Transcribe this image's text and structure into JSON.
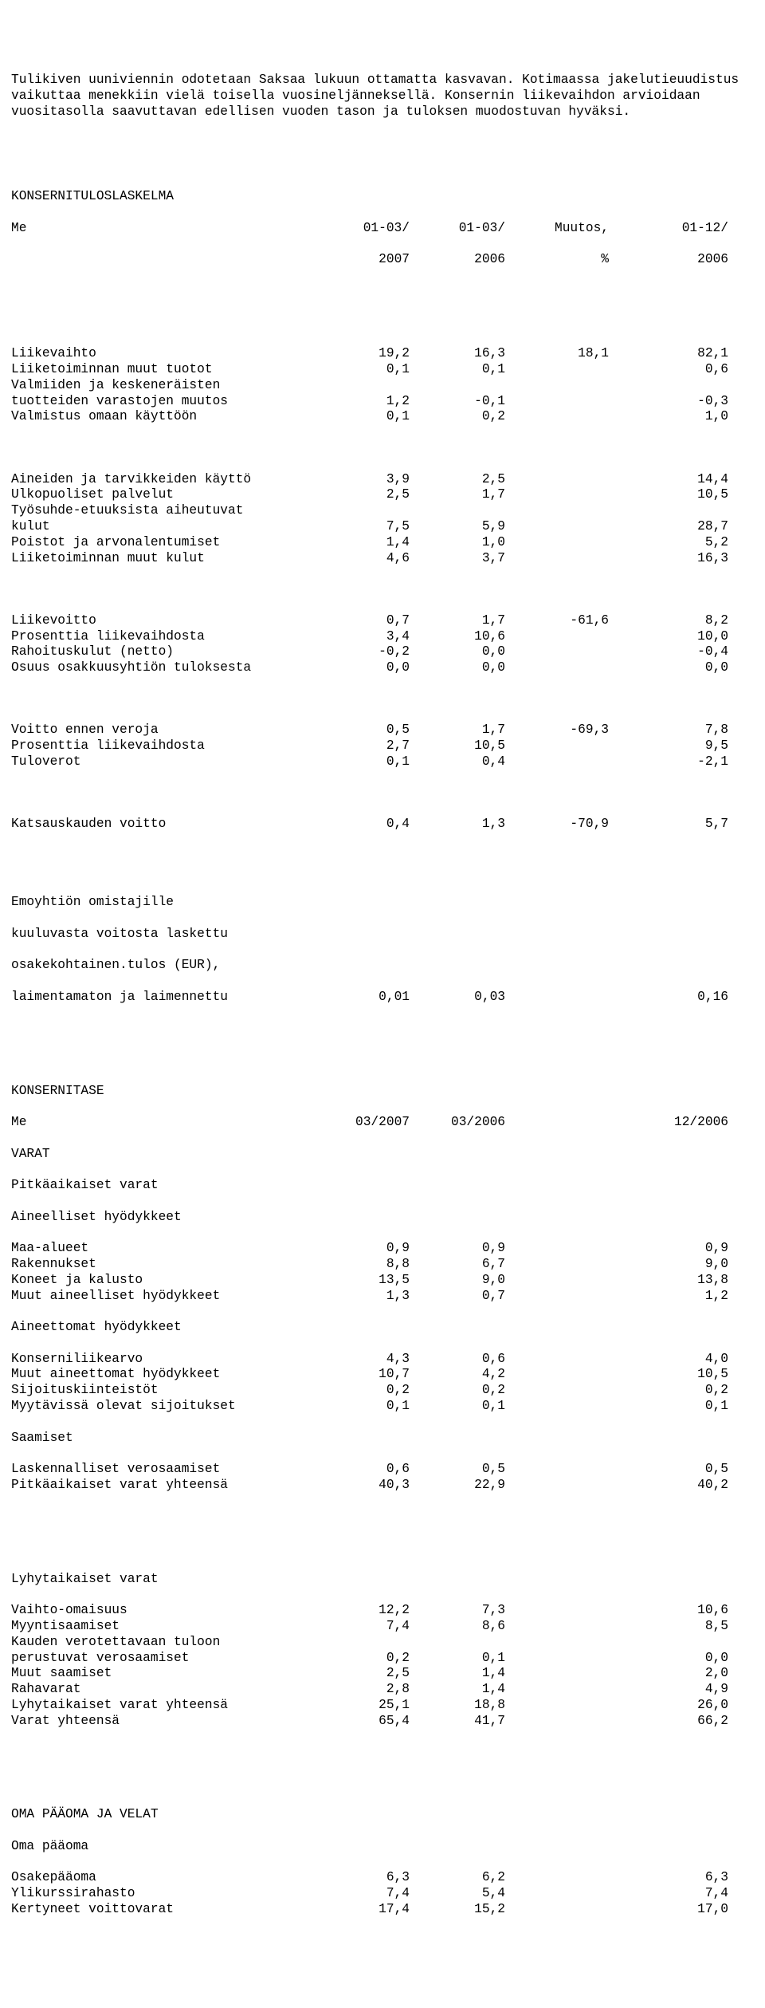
{
  "font": {
    "family": "Courier New, monospace",
    "size_pt": 12,
    "color": "#000000"
  },
  "background_color": "#ffffff",
  "intro_paragraph": "Tulikiven uuniviennin odotetaan Saksaa lukuun ottamatta kasvavan. Kotimaassa jakelutieuudistus vaikuttaa menekkiin vielä toisella vuosineljänneksellä. Konsernin liikevaihdon arvioidaan vuositasolla saavuttavan edellisen vuoden tason ja tuloksen muodostuvan hyväksi.",
  "income": {
    "title": "KONSERNITULOSLASKELMA",
    "unit": "Me",
    "header": {
      "c1a": "01-03/",
      "c1b": "2007",
      "c2a": "01-03/",
      "c2b": "2006",
      "c3a": "Muutos,",
      "c3b": "%",
      "c4a": "01-12/",
      "c4b": "2006"
    },
    "rows_a": [
      {
        "label": "Liikevaihto",
        "c1": "19,2",
        "c2": "16,3",
        "c3": "18,1",
        "c4": "82,1"
      },
      {
        "label": "Liiketoiminnan muut tuotot",
        "c1": "0,1",
        "c2": "0,1",
        "c3": "",
        "c4": "0,6"
      },
      {
        "label": "Valmiiden ja keskeneräisten",
        "c1": "",
        "c2": "",
        "c3": "",
        "c4": ""
      },
      {
        "label": "tuotteiden varastojen muutos",
        "c1": "1,2",
        "c2": "-0,1",
        "c3": "",
        "c4": "-0,3"
      },
      {
        "label": "Valmistus omaan käyttöön",
        "c1": "0,1",
        "c2": "0,2",
        "c3": "",
        "c4": "1,0"
      }
    ],
    "rows_b": [
      {
        "label": "Aineiden ja tarvikkeiden käyttö",
        "c1": "3,9",
        "c2": "2,5",
        "c3": "",
        "c4": "14,4"
      },
      {
        "label": "Ulkopuoliset palvelut",
        "c1": "2,5",
        "c2": "1,7",
        "c3": "",
        "c4": "10,5"
      },
      {
        "label": "Työsuhde-etuuksista aiheutuvat",
        "c1": "",
        "c2": "",
        "c3": "",
        "c4": ""
      },
      {
        "label": "kulut",
        "c1": "7,5",
        "c2": "5,9",
        "c3": "",
        "c4": "28,7"
      },
      {
        "label": "Poistot ja arvonalentumiset",
        "c1": "1,4",
        "c2": "1,0",
        "c3": "",
        "c4": "5,2"
      },
      {
        "label": "Liiketoiminnan muut kulut",
        "c1": "4,6",
        "c2": "3,7",
        "c3": "",
        "c4": "16,3"
      }
    ],
    "rows_c": [
      {
        "label": "Liikevoitto",
        "c1": "0,7",
        "c2": "1,7",
        "c3": "-61,6",
        "c4": "8,2"
      },
      {
        "label": "Prosenttia liikevaihdosta",
        "c1": "3,4",
        "c2": "10,6",
        "c3": "",
        "c4": "10,0"
      },
      {
        "label": "Rahoituskulut (netto)",
        "c1": "-0,2",
        "c2": "0,0",
        "c3": "",
        "c4": "-0,4"
      },
      {
        "label": "Osuus osakkuusyhtiön tuloksesta",
        "c1": "0,0",
        "c2": "0,0",
        "c3": "",
        "c4": "0,0"
      }
    ],
    "rows_d": [
      {
        "label": "Voitto ennen veroja",
        "c1": "0,5",
        "c2": "1,7",
        "c3": "-69,3",
        "c4": "7,8"
      },
      {
        "label": "Prosenttia liikevaihdosta",
        "c1": "2,7",
        "c2": "10,5",
        "c3": "",
        "c4": "9,5"
      },
      {
        "label": "Tuloverot",
        "c1": "0,1",
        "c2": "0,4",
        "c3": "",
        "c4": "-2,1"
      }
    ],
    "rows_e": [
      {
        "label": "Katsauskauden voitto",
        "c1": "0,4",
        "c2": "1,3",
        "c3": "-70,9",
        "c4": "5,7"
      }
    ],
    "eps_block": {
      "l1": "Emoyhtiön omistajille",
      "l2": "kuuluvasta voitosta laskettu",
      "l3": "osakekohtainen.tulos (EUR),",
      "row": {
        "label": "laimentamaton ja laimennettu",
        "c1": "0,01",
        "c2": "0,03",
        "c3": "",
        "c4": "0,16"
      }
    }
  },
  "balance": {
    "title": "KONSERNITASE",
    "unit": "Me",
    "header": {
      "c1": "03/2007",
      "c2": "03/2006",
      "c3": "",
      "c4": "12/2006"
    },
    "assets_title": "VARAT",
    "fixed_title": "Pitkäaikaiset varat",
    "tangible_title": "Aineelliset hyödykkeet",
    "tangible": [
      {
        "label": "Maa-alueet",
        "c1": "0,9",
        "c2": "0,9",
        "c4": "0,9"
      },
      {
        "label": "Rakennukset",
        "c1": "8,8",
        "c2": "6,7",
        "c4": "9,0"
      },
      {
        "label": "Koneet ja kalusto",
        "c1": "13,5",
        "c2": "9,0",
        "c4": "13,8"
      },
      {
        "label": "Muut aineelliset hyödykkeet",
        "c1": "1,3",
        "c2": "0,7",
        "c4": "1,2"
      }
    ],
    "intangible_title": "Aineettomat hyödykkeet",
    "intangible": [
      {
        "label": "Konserniliikearvo",
        "c1": "4,3",
        "c2": "0,6",
        "c4": "4,0"
      },
      {
        "label": "Muut aineettomat hyödykkeet",
        "c1": "10,7",
        "c2": "4,2",
        "c4": "10,5"
      },
      {
        "label": "Sijoituskiinteistöt",
        "c1": "0,2",
        "c2": "0,2",
        "c4": "0,2"
      },
      {
        "label": "Myytävissä olevat sijoitukset",
        "c1": "0,1",
        "c2": "0,1",
        "c4": "0,1"
      }
    ],
    "receivables_title": "Saamiset",
    "receivables": [
      {
        "label": "Laskennalliset verosaamiset",
        "c1": "0,6",
        "c2": "0,5",
        "c4": "0,5"
      },
      {
        "label": "Pitkäaikaiset varat yhteensä",
        "c1": "40,3",
        "c2": "22,9",
        "c4": "40,2"
      }
    ],
    "current_title": "Lyhytaikaiset varat",
    "current": [
      {
        "label": "Vaihto-omaisuus",
        "c1": "12,2",
        "c2": "7,3",
        "c4": "10,6"
      },
      {
        "label": "Myyntisaamiset",
        "c1": "7,4",
        "c2": "8,6",
        "c4": "8,5"
      },
      {
        "label": "Kauden verotettavaan tuloon",
        "c1": "",
        "c2": "",
        "c4": ""
      },
      {
        "label": "perustuvat verosaamiset",
        "c1": "0,2",
        "c2": "0,1",
        "c4": "0,0"
      },
      {
        "label": "Muut saamiset",
        "c1": "2,5",
        "c2": "1,4",
        "c4": "2,0"
      },
      {
        "label": "Rahavarat",
        "c1": "2,8",
        "c2": "1,4",
        "c4": "4,9"
      },
      {
        "label": "Lyhytaikaiset varat yhteensä",
        "c1": "25,1",
        "c2": "18,8",
        "c4": "26,0"
      },
      {
        "label": "Varat yhteensä",
        "c1": "65,4",
        "c2": "41,7",
        "c4": "66,2"
      }
    ],
    "equity_title": "OMA PÄÄOMA JA VELAT",
    "equity_sub": "Oma pääoma",
    "equity": [
      {
        "label": "Osakepääoma",
        "c1": "6,3",
        "c2": "6,2",
        "c4": "6,3"
      },
      {
        "label": "Ylikurssirahasto",
        "c1": "7,4",
        "c2": "5,4",
        "c4": "7,4"
      },
      {
        "label": "Kertyneet voittovarat",
        "c1": "17,4",
        "c2": "15,2",
        "c4": "17,0"
      }
    ]
  }
}
